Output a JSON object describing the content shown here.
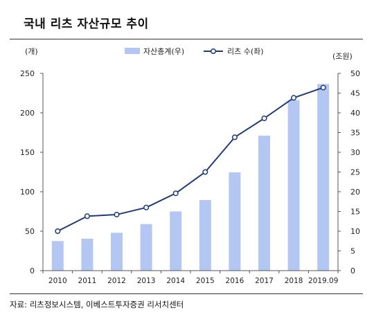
{
  "title": "국내 리츠 자산규모 추이",
  "source": "자료: 리츠정보시스템, 이베스트투자증권 리서치센터",
  "chart_data": {
    "type": "bar",
    "categories": [
      "2010",
      "2011",
      "2012",
      "2013",
      "2014",
      "2015",
      "2016",
      "2017",
      "2018",
      "2019.09"
    ],
    "left_axis_unit": "(개)",
    "right_axis_unit": "(조원)",
    "ylim_left": [
      0,
      250
    ],
    "ylim_right": [
      0,
      50
    ],
    "yticks_left": [
      "0",
      "50",
      "100",
      "150",
      "200",
      "250"
    ],
    "yticks_right": [
      "0",
      "5",
      "10",
      "15",
      "20",
      "25",
      "30",
      "35",
      "40",
      "45",
      "50"
    ],
    "grid": false,
    "legend_position": "top",
    "series": [
      {
        "name": "자산총계(우)",
        "type": "bar",
        "axis": "right",
        "color": "#b4c7f2",
        "values": [
          7.5,
          8.1,
          9.6,
          11.8,
          15.0,
          17.9,
          24.9,
          34.2,
          43.2,
          47.3
        ]
      },
      {
        "name": "리츠 수(좌)",
        "type": "line",
        "axis": "left",
        "color": "#1f3a7a",
        "values": [
          50,
          69,
          71,
          80,
          98,
          125,
          169,
          193,
          219,
          232
        ]
      }
    ]
  }
}
